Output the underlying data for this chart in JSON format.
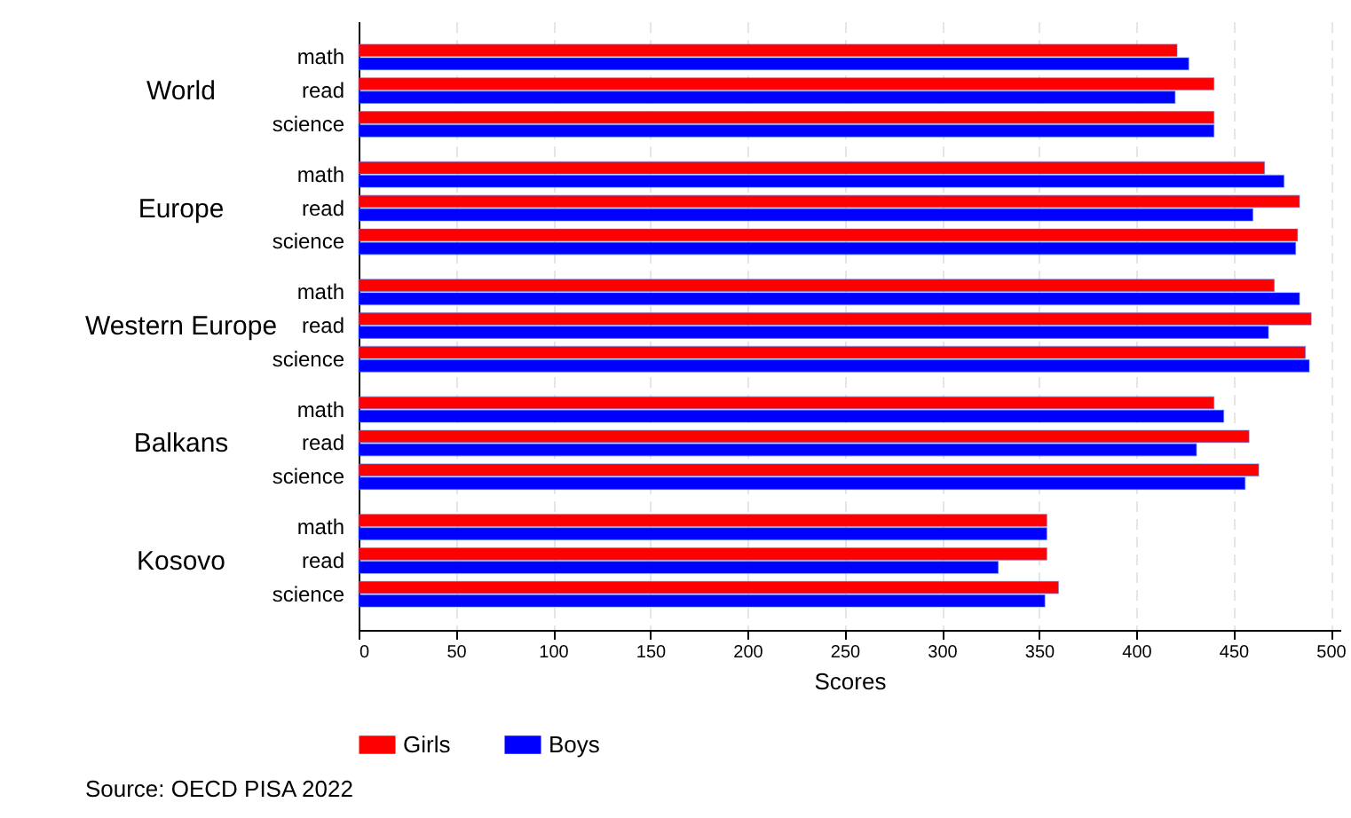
{
  "chart_data": {
    "type": "bar",
    "orientation": "horizontal",
    "categories": [
      "math",
      "read",
      "science",
      "math",
      "read",
      "science",
      "math",
      "read",
      "science",
      "math",
      "read",
      "science",
      "math",
      "read",
      "science"
    ],
    "series": [
      {
        "name": "Girls",
        "color": "#ff0000",
        "values": [
          421,
          440,
          440,
          466,
          484,
          483,
          471,
          490,
          487,
          440,
          458,
          463,
          354,
          354,
          360
        ]
      },
      {
        "name": "Boys",
        "color": "#0000ff",
        "values": [
          427,
          420,
          440,
          476,
          460,
          482,
          484,
          468,
          489,
          445,
          431,
          456,
          354,
          329,
          353
        ]
      }
    ],
    "xlabel": "Scores",
    "xlim": [
      0,
      505
    ],
    "xticks": [
      0,
      50,
      100,
      150,
      200,
      250,
      300,
      350,
      400,
      450,
      500
    ],
    "grid": "x",
    "legend": "bottom",
    "annotations": [
      "World",
      "Europe",
      "Western Europe",
      "Balkans",
      "Kosovo",
      "Source: OECD PISA 2022"
    ]
  }
}
